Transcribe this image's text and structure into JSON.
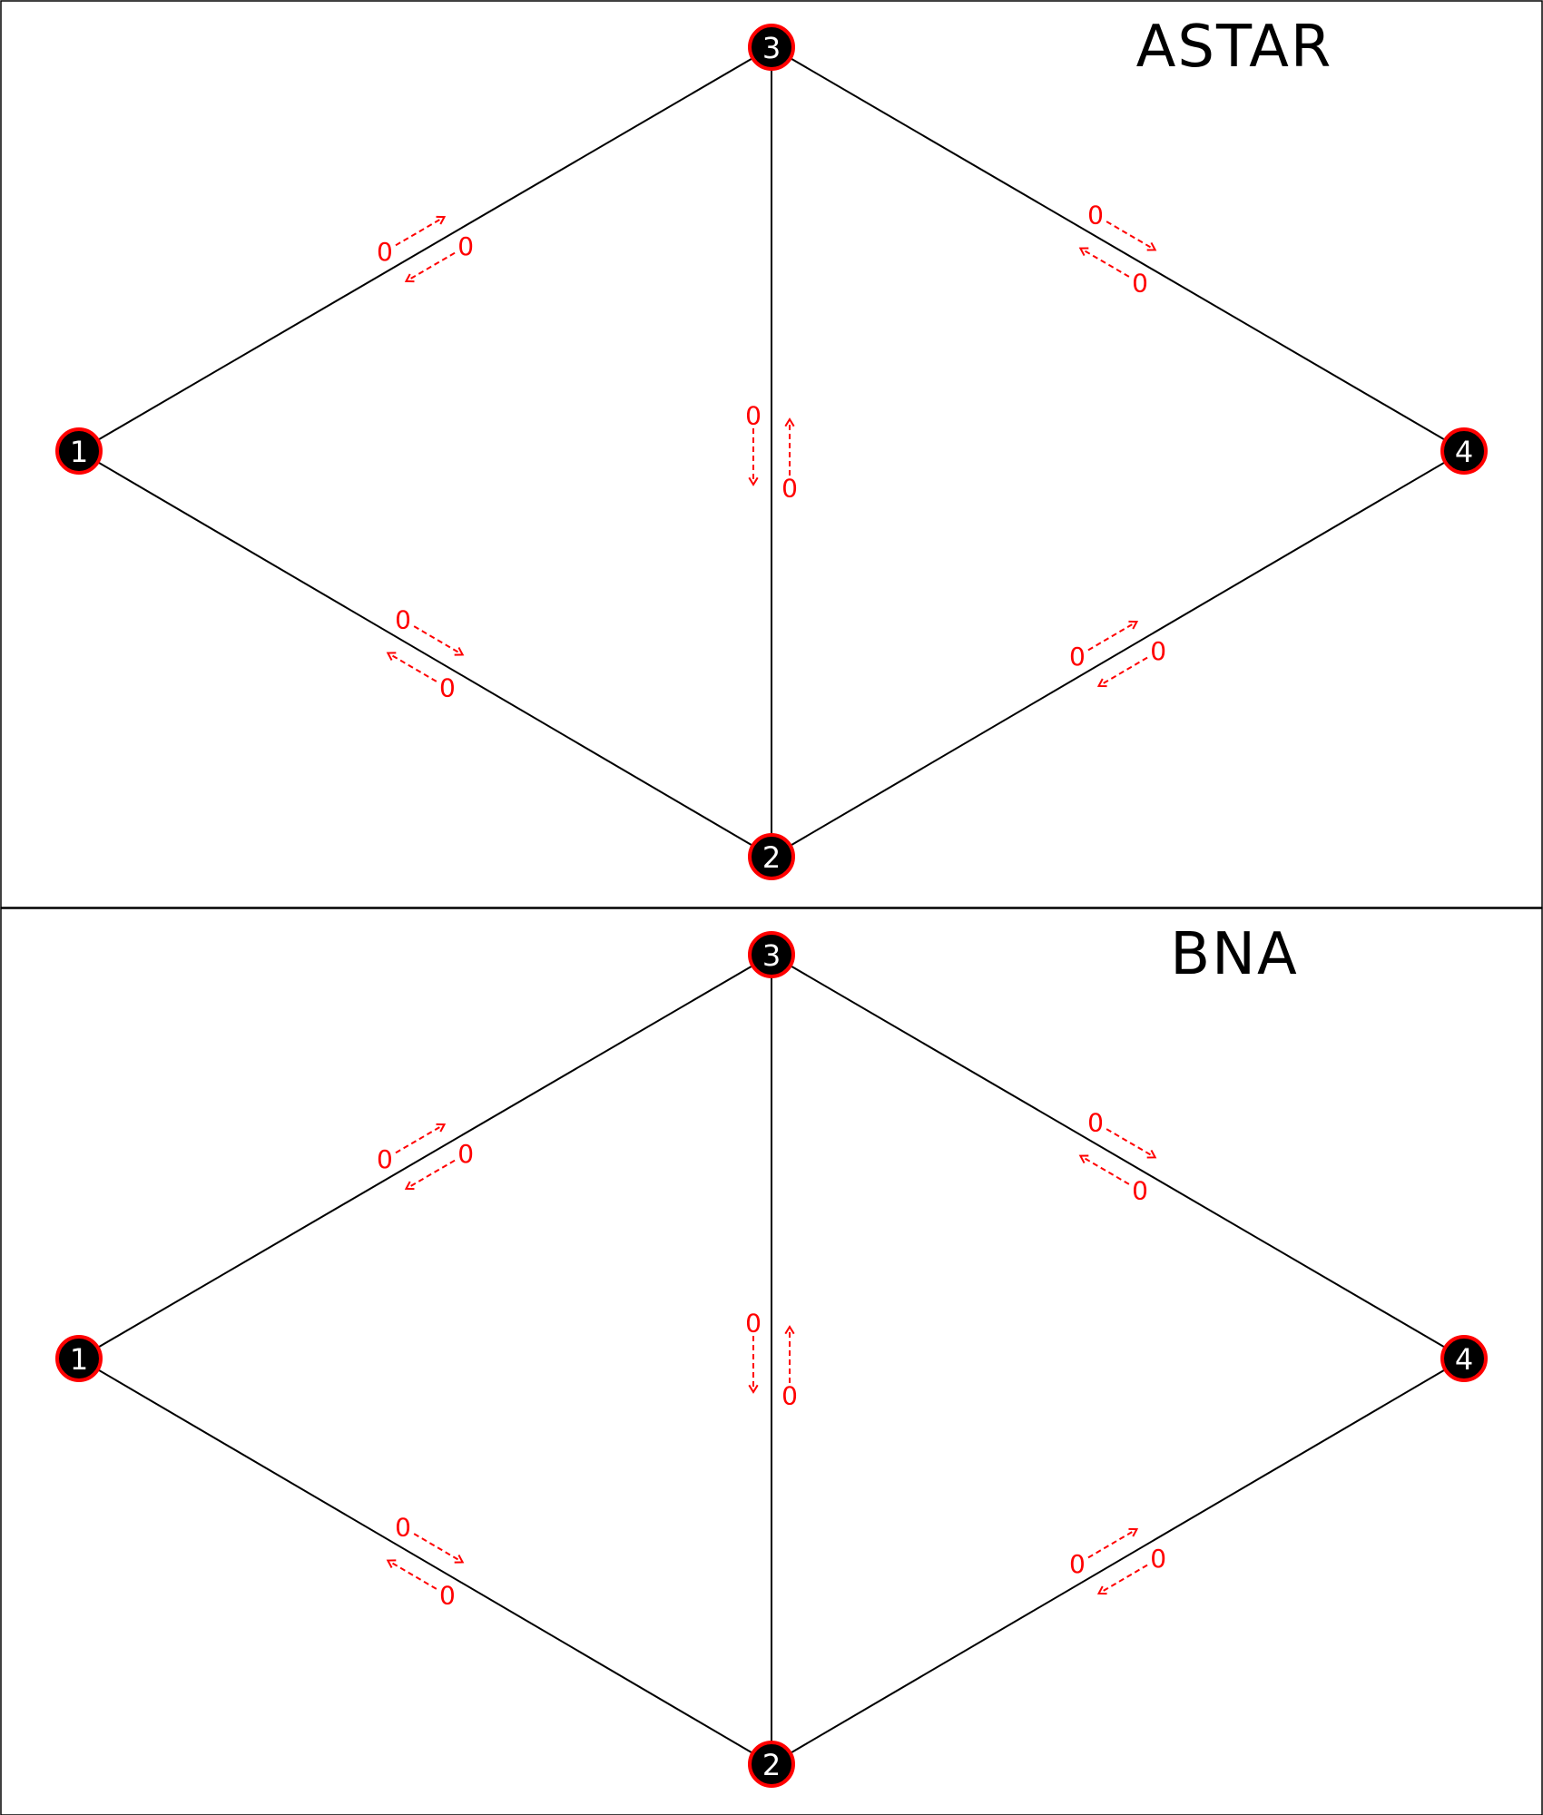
{
  "colors": {
    "edge": "#000000",
    "node_fill": "#000000",
    "node_border": "#ff0000",
    "node_text": "#ffffff",
    "flow": "#ff0000"
  },
  "panels": [
    {
      "title": "ASTAR",
      "nodes": [
        {
          "id": "1",
          "label": "1"
        },
        {
          "id": "2",
          "label": "2"
        },
        {
          "id": "3",
          "label": "3"
        },
        {
          "id": "4",
          "label": "4"
        }
      ],
      "edges": [
        {
          "from": "1",
          "to": "3",
          "forward": "0",
          "backward": "0"
        },
        {
          "from": "3",
          "to": "4",
          "forward": "0",
          "backward": "0"
        },
        {
          "from": "1",
          "to": "2",
          "forward": "0",
          "backward": "0"
        },
        {
          "from": "2",
          "to": "4",
          "forward": "0",
          "backward": "0"
        },
        {
          "from": "3",
          "to": "2",
          "forward": "0",
          "backward": "0"
        }
      ]
    },
    {
      "title": "BNA",
      "nodes": [
        {
          "id": "1",
          "label": "1"
        },
        {
          "id": "2",
          "label": "2"
        },
        {
          "id": "3",
          "label": "3"
        },
        {
          "id": "4",
          "label": "4"
        }
      ],
      "edges": [
        {
          "from": "1",
          "to": "3",
          "forward": "0",
          "backward": "0"
        },
        {
          "from": "3",
          "to": "4",
          "forward": "0",
          "backward": "0"
        },
        {
          "from": "1",
          "to": "2",
          "forward": "0",
          "backward": "0"
        },
        {
          "from": "2",
          "to": "4",
          "forward": "0",
          "backward": "0"
        },
        {
          "from": "3",
          "to": "2",
          "forward": "0",
          "backward": "0"
        }
      ]
    }
  ]
}
